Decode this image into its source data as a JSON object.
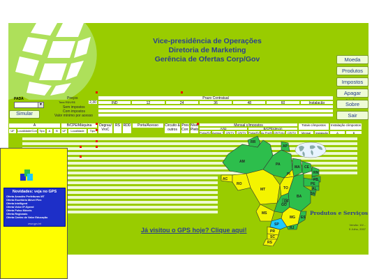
{
  "header": {
    "line1": "Vice-presidência de Operações",
    "line2": "Diretoria de Marketing",
    "line3": "Gerência de Ofertas Corp/Gov"
  },
  "buttons": {
    "moeda": "Moeda",
    "produtos": "Produtos",
    "impostos": "Impostos",
    "apagar": "Apagar Linha",
    "sobre": "Sobre",
    "sair": "Sair",
    "simular": "Simular"
  },
  "pada": {
    "label": "PADA",
    "value": ""
  },
  "prices": {
    "precos": "Preços",
    "taxa_label": "Taxa R$/US$",
    "taxa_value": "2,30",
    "sem_impostos": "Sem impostos",
    "com_impostos": "Com impostos",
    "valor_minimo": "Valor mínimo por acesso"
  },
  "prazo": {
    "title": "Prazo Contratual",
    "cols": [
      "IND",
      "12",
      "24",
      "36",
      "48",
      "60",
      "Instalação"
    ]
  },
  "columns": {
    "a": "A",
    "b_cpe": "B/CPE/Máquina",
    "degrau": "Degrau/ VroC",
    "rs": "RS",
    "rdd": "RDD",
    "porta": "Porta/Acesso",
    "circuito": "Circuito & outros",
    "prev": "Prev Corr.",
    "nivel": "Nível Pleib",
    "mensal": "Mensal c/impostos",
    "totais": "Totais c/impostos",
    "instalacao": "Instalação c/impostos",
    "sub_a": "A/sp",
    "sub_b": "B/CPE/devon",
    "uf": "UF",
    "localidade": "Localidade/Conv",
    "tipo": "Tipo",
    "uf2": "UF",
    "localidade2": "Localidade",
    "tipo2": "Tipo",
    "porta_svt": "Porta/SVT",
    "acesso_tam": "Acesso Tam",
    "cr_tv": "CR/TV",
    "porta_svt2": "Porta/SVT",
    "ac_pm": "Ac Pm/SvP",
    "cr_tv_loc": "CR/TV/LOC",
    "mensal2": "Mensal",
    "instalacao2": "Instalação",
    "col_a": "A",
    "col_b": "B"
  },
  "link": "Já visitou o GPS hoje? Clique aqui!",
  "produtos_servicos": "Produtos e Serviços",
  "versao": {
    "line1": "Versão: 10/...",
    "line2": "5 Julho, 2007"
  },
  "map_states": [
    "AM",
    "PA",
    "MA",
    "CE",
    "RN",
    "PB",
    "PE",
    "AL",
    "SE",
    "BA",
    "TO",
    "PI",
    "AC",
    "RO",
    "MT",
    "GO",
    "DF",
    "MS",
    "MG",
    "ES",
    "RJ",
    "SP",
    "PR",
    "SC",
    "RS",
    "RR",
    "AP"
  ],
  "promo": {
    "title": "Novidades: veja no GPS",
    "items": [
      "Oferta Arcadêo Prefeituras MT",
      "Oferta Escritório Móvel Flex",
      "Oferta Intelligent",
      "Oferta Voice IP-Speed",
      "Oferta Pulso Móveis",
      "Oferta Regionais",
      "Oferta Centro de Valor Educação"
    ],
    "footer": "www.gps.brt"
  },
  "colors": {
    "sheet_bg": "#99cc00",
    "header_text": "#2b3f8f",
    "map_green": "#2dbe4c",
    "map_yellow": "#f4f400",
    "promo_bg": "#ffff00",
    "promo_box": "#1d2fc8"
  }
}
